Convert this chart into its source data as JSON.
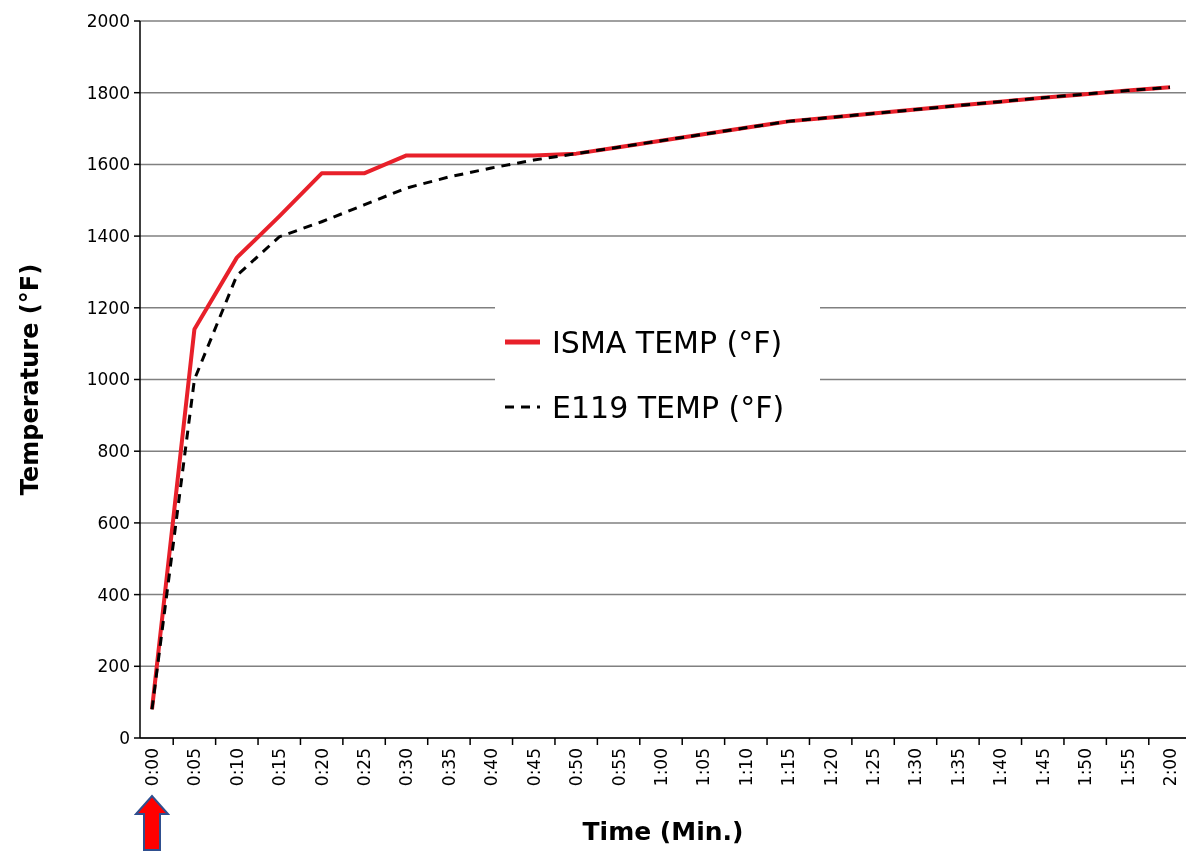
{
  "chart_data": {
    "type": "line",
    "xlabel": "Time (Min.)",
    "ylabel": "Temperature (°F)",
    "categories": [
      "0:00",
      "0:05",
      "0:10",
      "0:15",
      "0:20",
      "0:25",
      "0:30",
      "0:35",
      "0:40",
      "0:45",
      "0:50",
      "0:55",
      "1:00",
      "1:05",
      "1:10",
      "1:15",
      "1:20",
      "1:25",
      "1:30",
      "1:35",
      "1:40",
      "1:45",
      "1:50",
      "1:55",
      "2:00"
    ],
    "series": [
      {
        "name": "ISMA TEMP (°F)",
        "color": "#e8202a",
        "line_style": "solid",
        "values": [
          80,
          1140,
          1340,
          1455,
          1575,
          1575,
          1625,
          1625,
          1625,
          1625,
          1630,
          1648,
          1666,
          1684,
          1702,
          1720,
          1731,
          1742,
          1753,
          1764,
          1775,
          1786,
          1796,
          1806,
          1815
        ]
      },
      {
        "name": "E119 TEMP (°F)",
        "color": "#000000",
        "line_style": "dashed",
        "values": [
          80,
          1000,
          1290,
          1398,
          1440,
          1487,
          1534,
          1565,
          1590,
          1612,
          1630,
          1648,
          1666,
          1684,
          1702,
          1720,
          1731,
          1742,
          1753,
          1764,
          1775,
          1786,
          1796,
          1806,
          1815
        ]
      }
    ],
    "ylim": [
      0,
      2000
    ],
    "yticks": [
      0,
      200,
      400,
      600,
      800,
      1000,
      1200,
      1400,
      1600,
      1800,
      2000
    ],
    "grid": "y",
    "legend": "center",
    "marker": "none"
  }
}
